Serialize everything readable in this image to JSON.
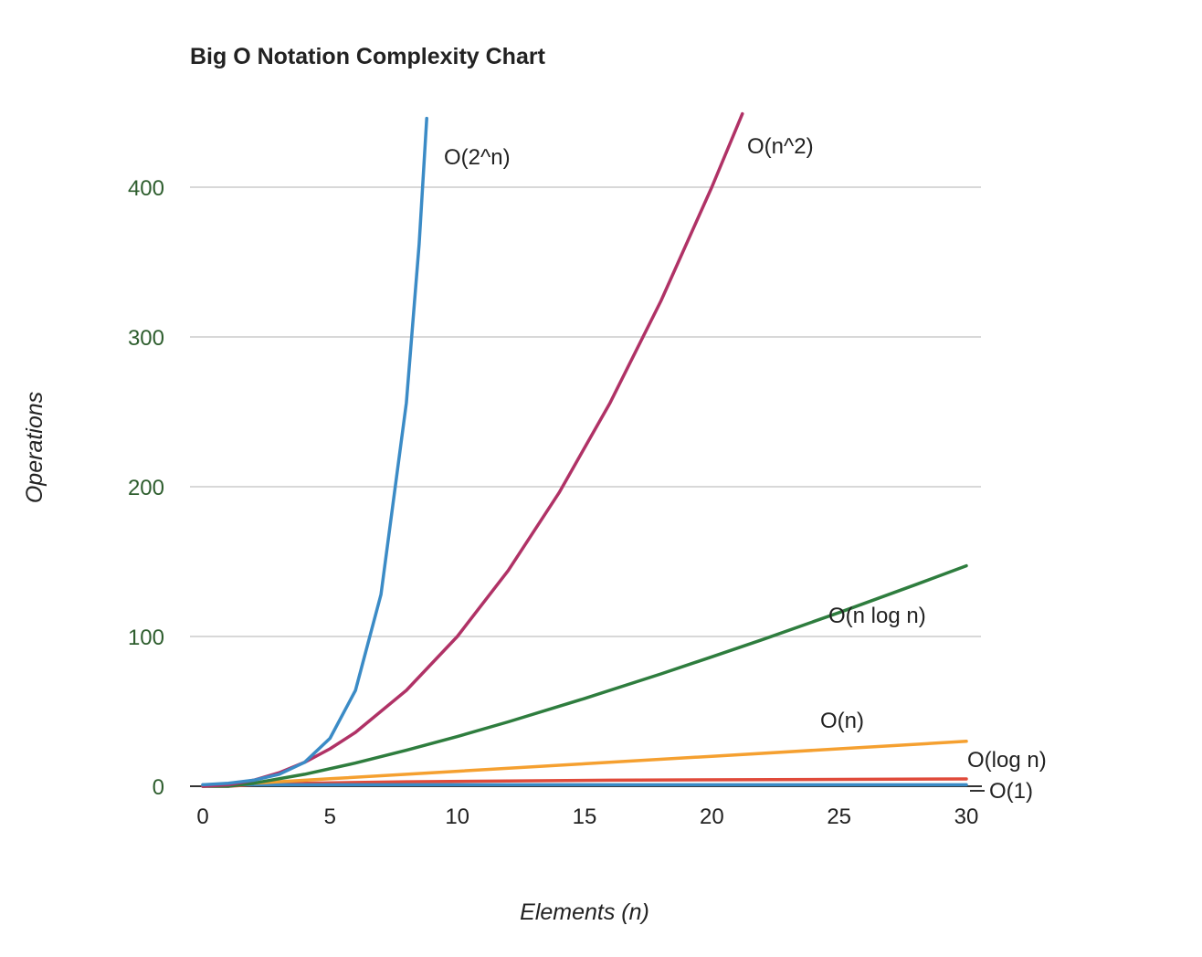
{
  "chart_data": {
    "type": "line",
    "title": "Big O Notation Complexity Chart",
    "xlabel": "Elements (n)",
    "ylabel": "Operations",
    "xlim": [
      0,
      30
    ],
    "ylim": [
      0,
      450
    ],
    "x_ticks": [
      0,
      5,
      10,
      15,
      20,
      25,
      30
    ],
    "y_ticks": [
      0,
      100,
      200,
      300,
      400
    ],
    "grid": true,
    "legend": "none",
    "series": [
      {
        "name": "O(2^n)",
        "color": "#3b8bc6",
        "x": [
          0,
          1,
          2,
          3,
          4,
          5,
          6,
          7,
          8,
          8.5,
          8.8
        ],
        "y": [
          1,
          2,
          4,
          8,
          16,
          32,
          64,
          128,
          256,
          362,
          446
        ]
      },
      {
        "name": "O(n^2)",
        "color": "#b03266",
        "x": [
          0,
          1,
          2,
          3,
          4,
          5,
          6,
          8,
          10,
          12,
          14,
          16,
          18,
          20,
          21.2
        ],
        "y": [
          0,
          1,
          4,
          9,
          16,
          25,
          36,
          64,
          100,
          144,
          196,
          256,
          324,
          400,
          449
        ]
      },
      {
        "name": "O(n log n)",
        "color": "#2e7d3e",
        "x": [
          0,
          1,
          2,
          4,
          6,
          8,
          10,
          12,
          15,
          18,
          20,
          22,
          25,
          28,
          30
        ],
        "y": [
          0,
          0,
          2,
          8,
          15.5,
          24,
          33.2,
          43,
          58.6,
          75,
          86.4,
          98,
          116,
          134.6,
          147.2
        ]
      },
      {
        "name": "O(n)",
        "color": "#f5a030",
        "x": [
          0,
          5,
          10,
          15,
          20,
          25,
          30
        ],
        "y": [
          0,
          5,
          10,
          15,
          20,
          25,
          30
        ]
      },
      {
        "name": "O(log n)",
        "color": "#e04a3a",
        "x": [
          0,
          1,
          2,
          4,
          8,
          16,
          30
        ],
        "y": [
          0,
          0,
          1,
          2,
          3,
          4,
          4.9
        ]
      },
      {
        "name": "O(1)",
        "color": "#3b8bc6",
        "x": [
          0,
          30
        ],
        "y": [
          1,
          1
        ]
      }
    ]
  }
}
